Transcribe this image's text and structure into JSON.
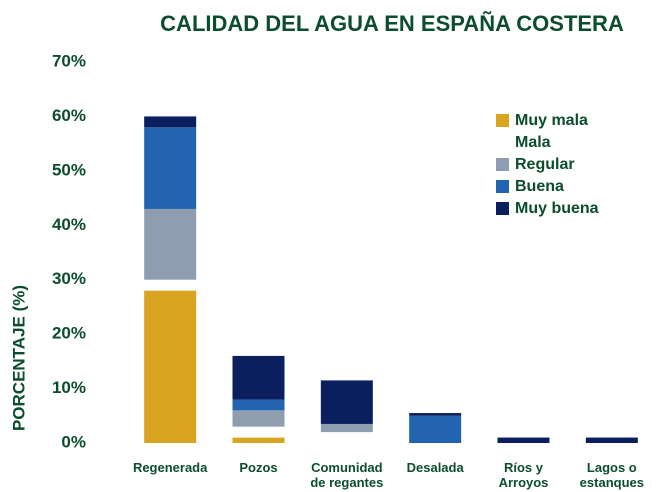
{
  "chart_data": {
    "type": "stacked_bar",
    "title": "CALIDAD DEL AGUA EN ESPAÑA COSTERA",
    "y_label": "PORCENTAJE (%)",
    "categories": [
      "Regenerada",
      "Pozos",
      "Comunidad de regantes",
      "Desalada",
      "Ríos y Arroyos",
      "Lagos o estanques"
    ],
    "series": [
      {
        "name": "Muy mala",
        "color": "#d9a521",
        "values": [
          28,
          1,
          0,
          0,
          0,
          0
        ]
      },
      {
        "name": "Mala",
        "color": "#ffffff",
        "values": [
          2,
          2,
          2,
          0,
          0,
          0
        ]
      },
      {
        "name": "Regular",
        "color": "#8f9db0",
        "values": [
          13,
          3,
          1.5,
          0,
          0,
          0
        ]
      },
      {
        "name": "Buena",
        "color": "#2364b0",
        "values": [
          15,
          2,
          0,
          5,
          0,
          0
        ]
      },
      {
        "name": "Muy buena",
        "color": "#0b1f5e",
        "values": [
          2,
          8,
          8,
          0.5,
          1,
          1
        ]
      }
    ],
    "ylim": [
      0,
      70
    ],
    "yticks": [
      {
        "value": 0,
        "label": "0%"
      },
      {
        "value": 10,
        "label": "10%"
      },
      {
        "value": 20,
        "label": "20%"
      },
      {
        "value": 30,
        "label": "30%"
      },
      {
        "value": 40,
        "label": "40%"
      },
      {
        "value": 50,
        "label": "50%"
      },
      {
        "value": 60,
        "label": "60%"
      },
      {
        "value": 70,
        "label": "70%"
      }
    ],
    "legend": "upper right"
  }
}
